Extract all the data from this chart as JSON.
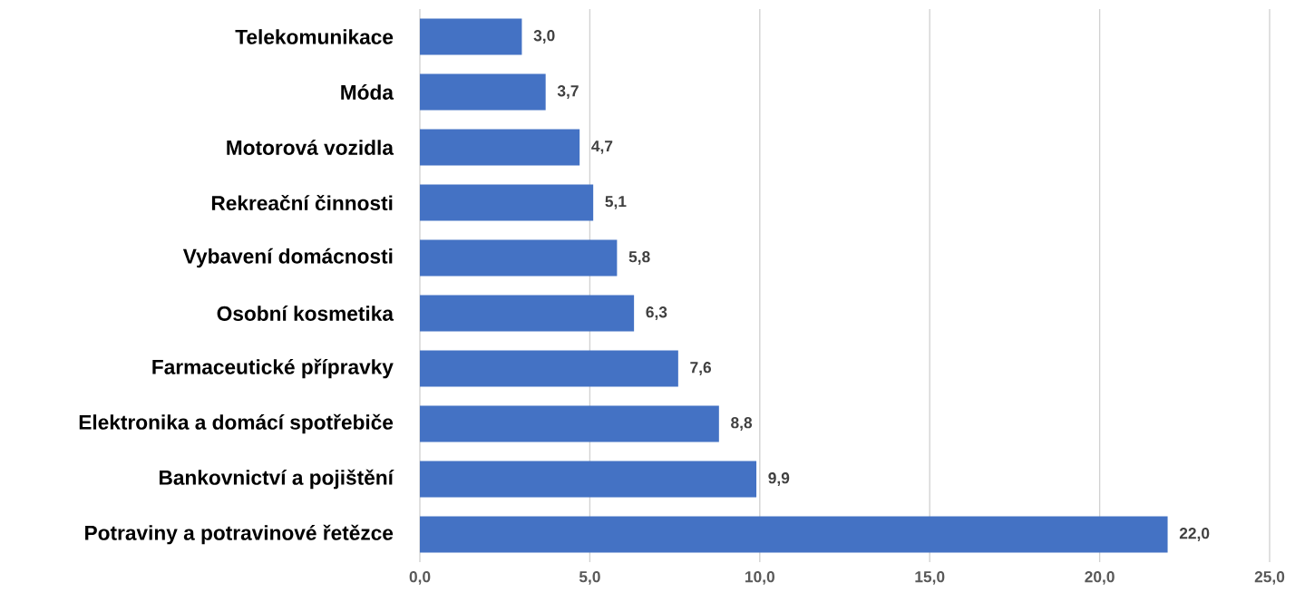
{
  "chart_data": {
    "type": "bar",
    "orientation": "horizontal",
    "categories": [
      "Telekomunikace",
      "Móda",
      "Motorová vozidla",
      "Rekreační činnosti",
      "Vybavení domácnosti",
      "Osobní kosmetika",
      "Farmaceutické přípravky",
      "Elektronika a domácí spotřebiče",
      "Bankovnictví a pojištění",
      "Potraviny a potravinové řetězce"
    ],
    "values": [
      3.0,
      3.7,
      4.7,
      5.1,
      5.8,
      6.3,
      7.6,
      8.8,
      9.9,
      22.0
    ],
    "value_labels": [
      "3,0",
      "3,7",
      "4,7",
      "5,1",
      "5,8",
      "6,3",
      "7,6",
      "8,8",
      "9,9",
      "22,0"
    ],
    "color": "#4472c4",
    "xlim": [
      0,
      25
    ],
    "xticks": [
      {
        "value": 0,
        "label": "0,0"
      },
      {
        "value": 5,
        "label": "5,0"
      },
      {
        "value": 10,
        "label": "10,0"
      },
      {
        "value": 15,
        "label": "15,0"
      },
      {
        "value": 20,
        "label": "20,0"
      },
      {
        "value": 25,
        "label": "25,0"
      }
    ],
    "grid": "x"
  }
}
